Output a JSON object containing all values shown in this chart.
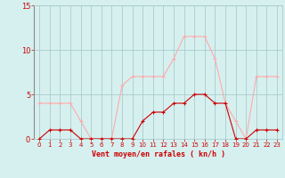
{
  "x": [
    0,
    1,
    2,
    3,
    4,
    5,
    6,
    7,
    8,
    9,
    10,
    11,
    12,
    13,
    14,
    15,
    16,
    17,
    18,
    19,
    20,
    21,
    22,
    23
  ],
  "wind_avg": [
    0,
    1,
    1,
    1,
    0,
    0,
    0,
    0,
    0,
    0,
    2,
    3,
    3,
    4,
    4,
    5,
    5,
    4,
    4,
    0,
    0,
    1,
    1,
    1
  ],
  "wind_gust": [
    4,
    4,
    4,
    4,
    2,
    0,
    0,
    0,
    6,
    7,
    7,
    7,
    7,
    9,
    11.5,
    11.5,
    11.5,
    9,
    4,
    2,
    0,
    7,
    7,
    7
  ],
  "color_avg": "#cc0000",
  "color_gust": "#ffaaaa",
  "bg_color": "#d6f0f0",
  "grid_color": "#aacccc",
  "axis_color": "#cc0000",
  "xlabel": "Vent moyen/en rafales ( kn/h )",
  "ylim": [
    0,
    15
  ],
  "xlim": [
    -0.5,
    23.5
  ],
  "yticks": [
    0,
    5,
    10,
    15
  ],
  "xticks": [
    0,
    1,
    2,
    3,
    4,
    5,
    6,
    7,
    8,
    9,
    10,
    11,
    12,
    13,
    14,
    15,
    16,
    17,
    18,
    19,
    20,
    21,
    22,
    23
  ]
}
